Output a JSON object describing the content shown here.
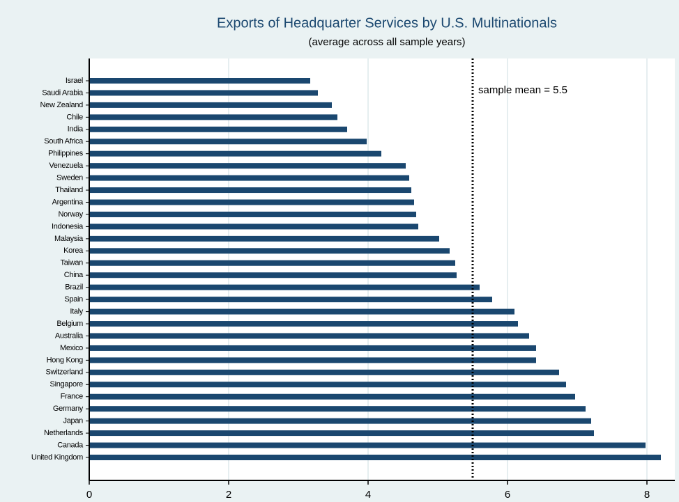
{
  "chart_data": {
    "type": "bar",
    "orientation": "horizontal",
    "title": "Exports of Headquarter Services by U.S. Multinationals",
    "subtitle": "(average across all sample years)",
    "categories": [
      "Israel",
      "Saudi Arabia",
      "New Zealand",
      "Chile",
      "India",
      "South Africa",
      "Philippines",
      "Venezuela",
      "Sweden",
      "Thailand",
      "Argentina",
      "Norway",
      "Indonesia",
      "Malaysia",
      "Korea",
      "Taiwan",
      "China",
      "Brazil",
      "Spain",
      "Italy",
      "Belgium",
      "Australia",
      "Mexico",
      "Hong Kong",
      "Switzerland",
      "Singapore",
      "France",
      "Germany",
      "Japan",
      "Netherlands",
      "Canada",
      "United Kingdom"
    ],
    "values": [
      3.17,
      3.28,
      3.48,
      3.56,
      3.7,
      3.98,
      4.19,
      4.54,
      4.59,
      4.62,
      4.66,
      4.69,
      4.72,
      5.02,
      5.17,
      5.25,
      5.27,
      5.6,
      5.78,
      6.1,
      6.15,
      6.31,
      6.41,
      6.41,
      6.74,
      6.84,
      6.97,
      7.12,
      7.2,
      7.24,
      7.98,
      8.2
    ],
    "color": "#1a476f",
    "xlim": [
      0,
      8.4
    ],
    "xticks": [
      0,
      2,
      4,
      6,
      8
    ],
    "grid": true,
    "mean_line": 5.5,
    "annotation": "sample mean = 5.5"
  }
}
